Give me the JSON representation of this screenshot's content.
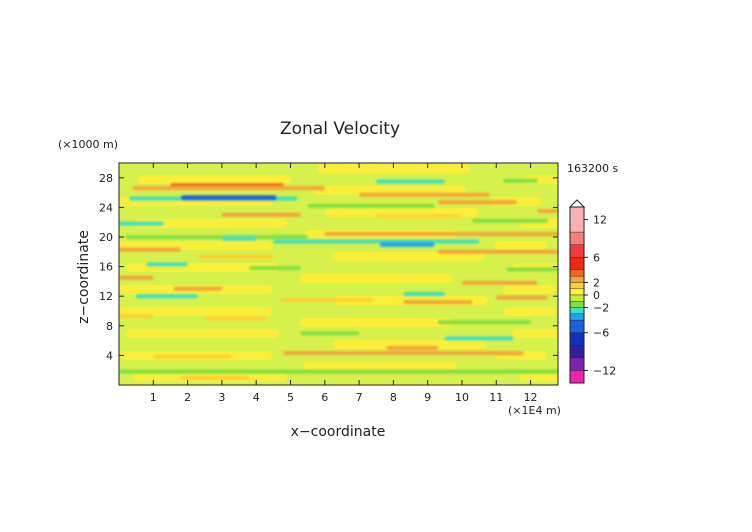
{
  "chart_data": {
    "type": "heatmap",
    "title": "Zonal Velocity",
    "xlabel": "x−coordinate",
    "ylabel": "z−coordinate",
    "x_unit": "(×1E4 m)",
    "y_unit": "(×1000 m)",
    "time_label": "163200 s",
    "xlim": [
      0,
      12.8
    ],
    "ylim": [
      0,
      30
    ],
    "x_ticks": [
      1,
      2,
      3,
      4,
      5,
      6,
      7,
      8,
      9,
      10,
      11,
      12
    ],
    "x_tick_labels": [
      "1",
      "2",
      "3",
      "4",
      "5",
      "6",
      "7",
      "8",
      "9",
      "10",
      "11",
      "12"
    ],
    "y_ticks": [
      4,
      8,
      12,
      16,
      20,
      24,
      28
    ],
    "y_tick_labels": [
      "4",
      "8",
      "12",
      "16",
      "20",
      "24",
      "28"
    ],
    "colorbar": {
      "min": -14,
      "max": 14,
      "ticks": [
        12,
        6,
        2,
        0,
        -2,
        -6,
        -12
      ],
      "tick_labels": [
        "12",
        "6",
        "2",
        "0",
        "−2",
        "−6",
        "−12"
      ],
      "levels": [
        {
          "from": 10,
          "to": 14,
          "color": "#f9b0b0"
        },
        {
          "from": 8,
          "to": 10,
          "color": "#f58080"
        },
        {
          "from": 6,
          "to": 8,
          "color": "#f03c3c"
        },
        {
          "from": 4,
          "to": 6,
          "color": "#ee2a10"
        },
        {
          "from": 3,
          "to": 4,
          "color": "#f06a1c"
        },
        {
          "from": 2,
          "to": 3,
          "color": "#f2a43a"
        },
        {
          "from": 1,
          "to": 2,
          "color": "#ffd233"
        },
        {
          "from": 0,
          "to": 1,
          "color": "#fbf23a"
        },
        {
          "from": -1,
          "to": 0,
          "color": "#c6ef2c"
        },
        {
          "from": -2,
          "to": -1,
          "color": "#80e040"
        },
        {
          "from": -3,
          "to": -2,
          "color": "#3ce0c8"
        },
        {
          "from": -4,
          "to": -3,
          "color": "#1aa8f0"
        },
        {
          "from": -6,
          "to": -4,
          "color": "#1c60e0"
        },
        {
          "from": -8,
          "to": -6,
          "color": "#1030c0"
        },
        {
          "from": -10,
          "to": -8,
          "color": "#3020a0"
        },
        {
          "from": -12,
          "to": -10,
          "color": "#8020b0"
        },
        {
          "from": -14,
          "to": -12,
          "color": "#f020b0"
        }
      ]
    },
    "bands": [
      {
        "z": 27.0,
        "x": [
          1.5,
          4.8
        ],
        "value": 3
      },
      {
        "z": 27.5,
        "x": [
          7.5,
          9.5
        ],
        "value": -2.5
      },
      {
        "z": 27.6,
        "x": [
          11.2,
          12.2
        ],
        "value": -1.5
      },
      {
        "z": 26.6,
        "x": [
          0.4,
          6.0
        ],
        "value": 2
      },
      {
        "z": 25.7,
        "x": [
          7.0,
          10.8
        ],
        "value": 2
      },
      {
        "z": 25.2,
        "x": [
          0.3,
          5.2
        ],
        "value": -2.5
      },
      {
        "z": 25.3,
        "x": [
          1.8,
          4.6
        ],
        "value": -4.5
      },
      {
        "z": 24.7,
        "x": [
          9.3,
          11.6
        ],
        "value": 2.5
      },
      {
        "z": 24.2,
        "x": [
          5.5,
          9.2
        ],
        "value": -2
      },
      {
        "z": 23.5,
        "x": [
          12.2,
          12.8
        ],
        "value": 2
      },
      {
        "z": 23.0,
        "x": [
          3.0,
          5.3
        ],
        "value": 2.5
      },
      {
        "z": 22.8,
        "x": [
          7.5,
          10.0
        ],
        "value": 1.5
      },
      {
        "z": 22.2,
        "x": [
          10.3,
          12.5
        ],
        "value": -1.5
      },
      {
        "z": 21.8,
        "x": [
          0.0,
          1.3
        ],
        "value": -2.5
      },
      {
        "z": 20.4,
        "x": [
          6.0,
          12.8
        ],
        "value": 2.5
      },
      {
        "z": 20.0,
        "x": [
          0.2,
          5.5
        ],
        "value": -2
      },
      {
        "z": 19.8,
        "x": [
          3.0,
          4.0
        ],
        "value": -3
      },
      {
        "z": 19.4,
        "x": [
          4.5,
          10.5
        ],
        "value": -2.5
      },
      {
        "z": 19.0,
        "x": [
          7.6,
          9.2
        ],
        "value": -3.5
      },
      {
        "z": 18.3,
        "x": [
          0.0,
          1.8
        ],
        "value": 2
      },
      {
        "z": 18.0,
        "x": [
          9.3,
          12.8
        ],
        "value": 2.5
      },
      {
        "z": 17.3,
        "x": [
          2.3,
          4.5
        ],
        "value": 1.5
      },
      {
        "z": 16.3,
        "x": [
          0.8,
          2.0
        ],
        "value": -2.5
      },
      {
        "z": 15.8,
        "x": [
          3.8,
          5.3
        ],
        "value": -1.5
      },
      {
        "z": 15.6,
        "x": [
          11.3,
          12.8
        ],
        "value": -1.5
      },
      {
        "z": 14.5,
        "x": [
          0.0,
          1.0
        ],
        "value": 2
      },
      {
        "z": 13.8,
        "x": [
          10.0,
          12.2
        ],
        "value": 2
      },
      {
        "z": 13.0,
        "x": [
          1.6,
          3.0
        ],
        "value": 2
      },
      {
        "z": 12.3,
        "x": [
          8.3,
          9.5
        ],
        "value": -2.5
      },
      {
        "z": 12.0,
        "x": [
          0.5,
          2.3
        ],
        "value": -2.5
      },
      {
        "z": 11.8,
        "x": [
          11.0,
          12.5
        ],
        "value": 2
      },
      {
        "z": 11.5,
        "x": [
          4.7,
          7.4
        ],
        "value": 1.5
      },
      {
        "z": 11.2,
        "x": [
          8.3,
          10.3
        ],
        "value": 2
      },
      {
        "z": 9.3,
        "x": [
          0.0,
          1.0
        ],
        "value": 1.5
      },
      {
        "z": 9.0,
        "x": [
          2.5,
          4.3
        ],
        "value": 1.5
      },
      {
        "z": 8.5,
        "x": [
          9.3,
          12.0
        ],
        "value": -1.5
      },
      {
        "z": 7.0,
        "x": [
          5.3,
          7.0
        ],
        "value": -1.5
      },
      {
        "z": 6.3,
        "x": [
          9.5,
          11.5
        ],
        "value": -2.5
      },
      {
        "z": 5.0,
        "x": [
          7.8,
          9.3
        ],
        "value": 2
      },
      {
        "z": 4.3,
        "x": [
          4.8,
          11.8
        ],
        "value": 2.5
      },
      {
        "z": 3.8,
        "x": [
          1.0,
          3.3
        ],
        "value": 1.5
      },
      {
        "z": 1.8,
        "x": [
          0.0,
          12.8
        ],
        "value": -1.5
      },
      {
        "z": 1.0,
        "x": [
          1.8,
          3.8
        ],
        "value": 1.5
      }
    ]
  }
}
